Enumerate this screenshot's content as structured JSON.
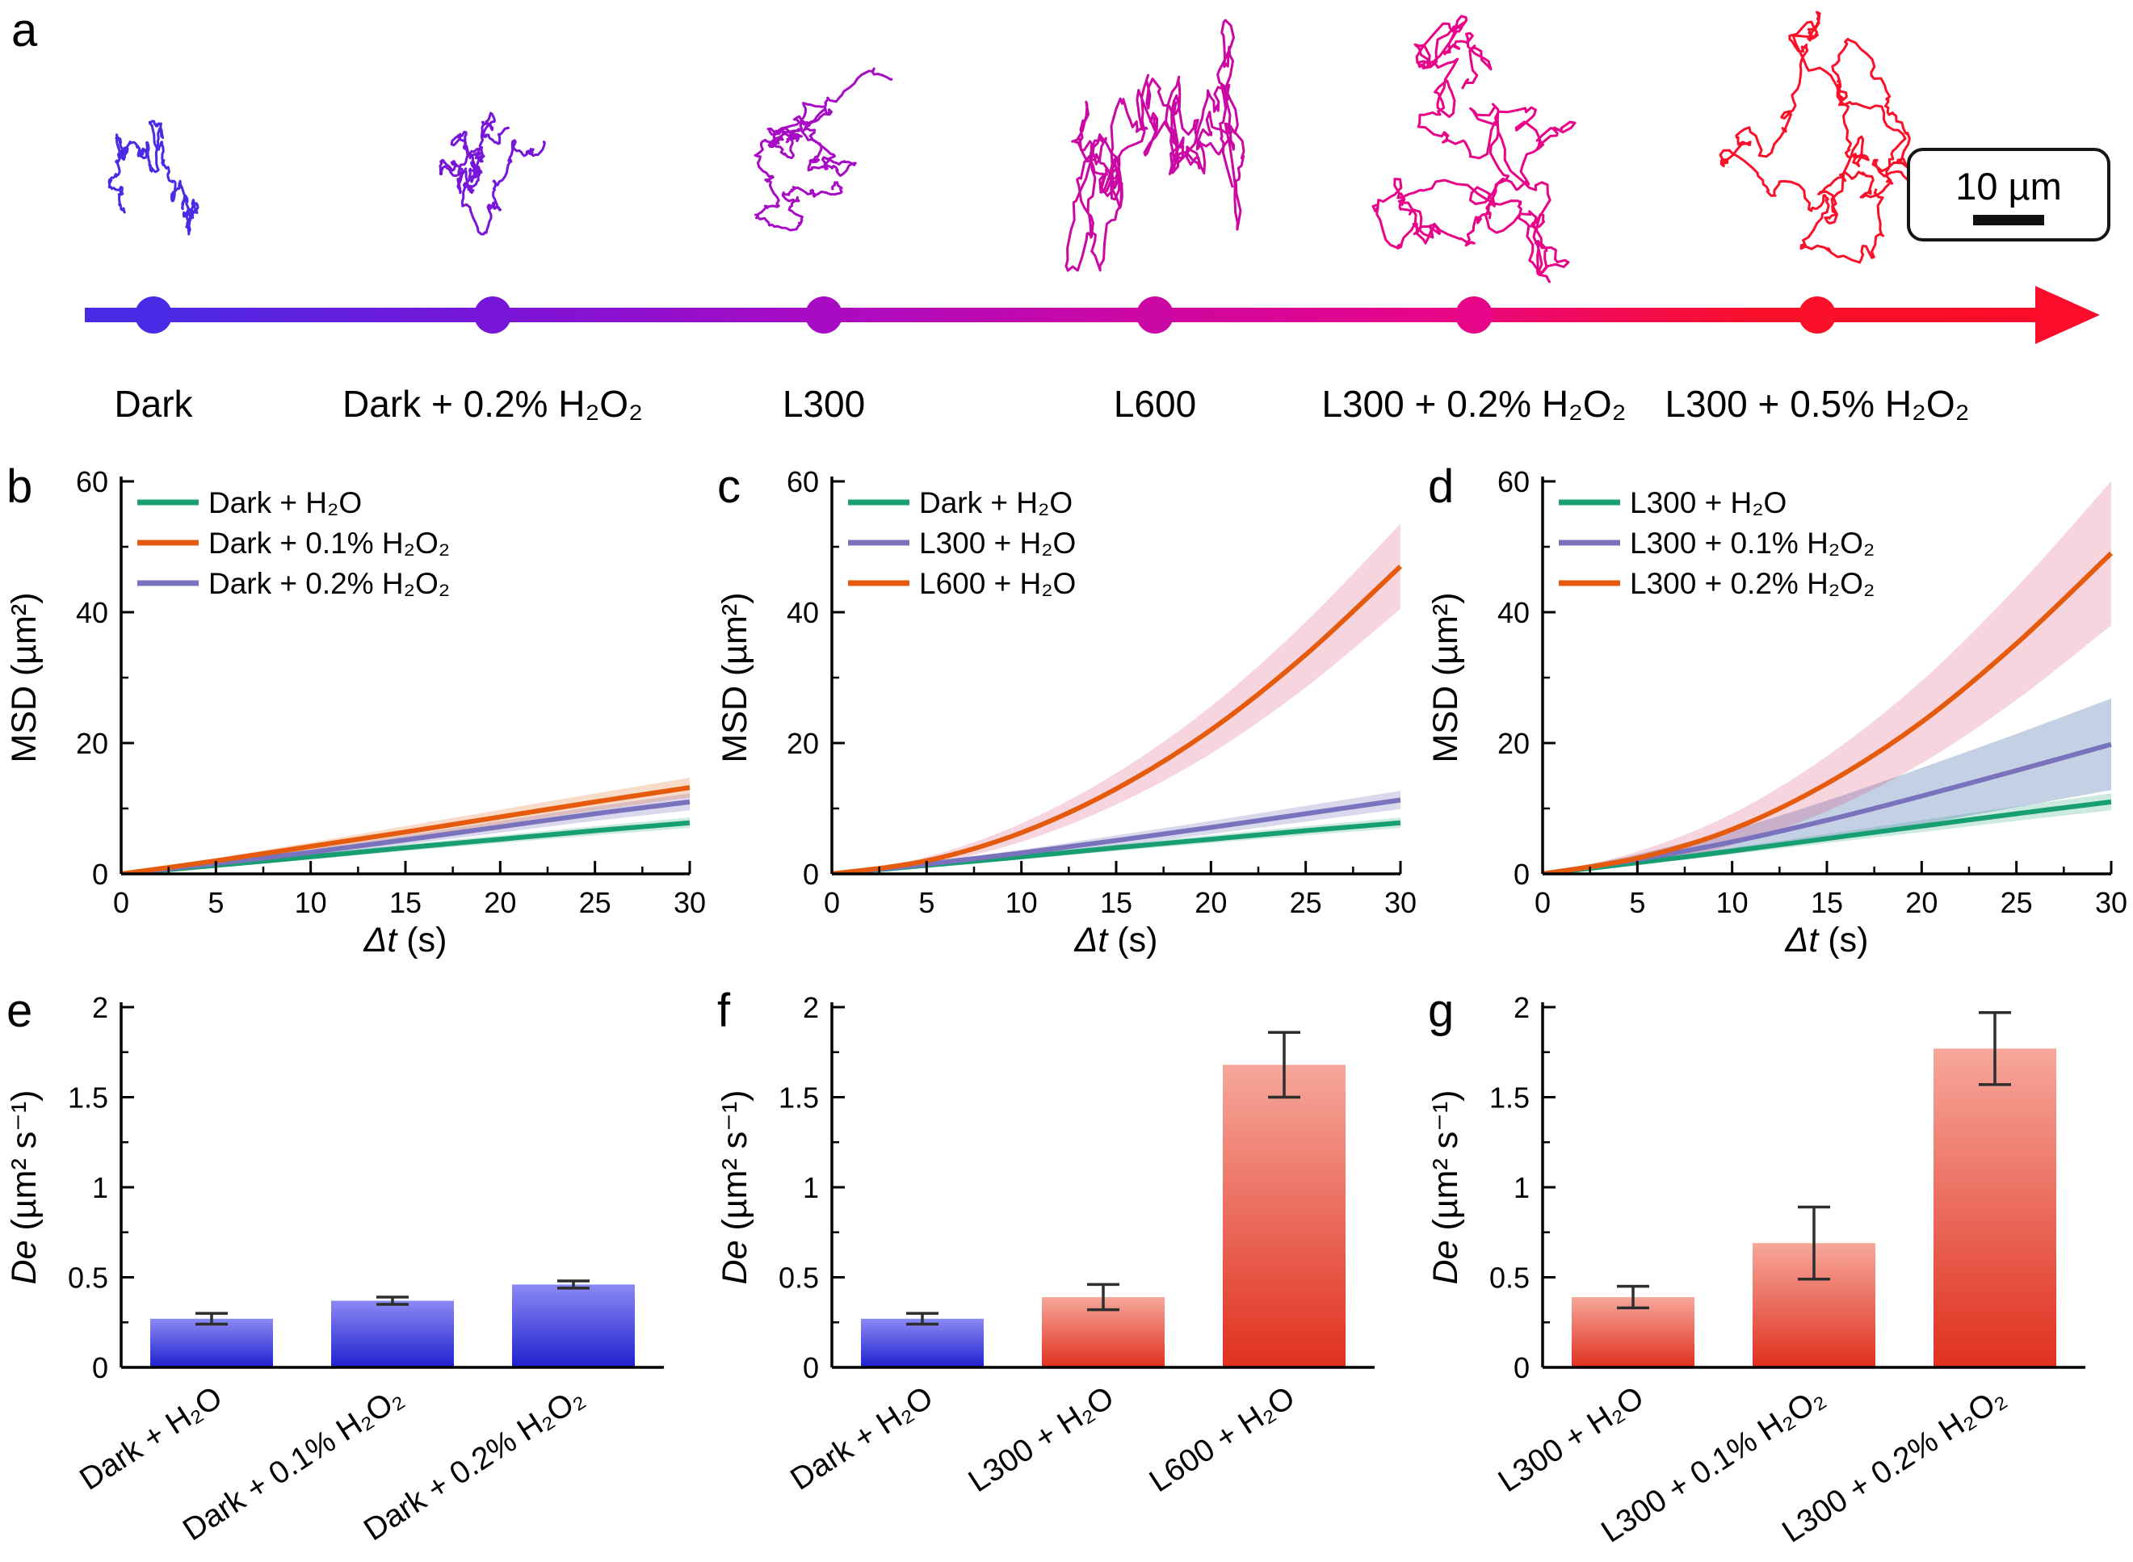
{
  "panel_a": {
    "label": "a",
    "scale_bar": {
      "label": "10 µm"
    },
    "arrow_gradient": [
      "#4033f0",
      "#fb0c2b"
    ],
    "conditions": [
      {
        "label": "Dark",
        "color": "#4a2be5"
      },
      {
        "label": "Dark + 0.2% H₂O₂",
        "color": "#7715d8"
      },
      {
        "label": "L300",
        "color": "#a70bc4"
      },
      {
        "label": "L600",
        "color": "#cb07a4"
      },
      {
        "label": "L300 + 0.2% H₂O₂",
        "color": "#e70488"
      },
      {
        "label": "L300 + 0.5% H₂O₂",
        "color": "#fa1028"
      }
    ]
  },
  "chart_data": [
    {
      "panel": "b",
      "type": "line",
      "xlabel": {
        "it": "Δt",
        "rest": " (s)"
      },
      "ylabel": "MSD (µm²)",
      "xlim": [
        0,
        30
      ],
      "ylim": [
        0,
        60
      ],
      "xticks": [
        0,
        5,
        10,
        15,
        20,
        25,
        30
      ],
      "yticks": [
        0,
        20,
        40,
        60
      ],
      "x": [
        0,
        5,
        10,
        15,
        20,
        25,
        30
      ],
      "plot_order": [
        0,
        2,
        1
      ],
      "legend_position": "top-left",
      "series": [
        {
          "name": "Dark + H₂O",
          "color": "#189e73",
          "band_color": "rgba(24,158,115,0.22)",
          "values": [
            0,
            1.3,
            2.6,
            4.0,
            5.3,
            6.6,
            7.8
          ],
          "band": [
            0,
            0.3,
            0.4,
            0.5,
            0.6,
            0.7,
            0.8
          ]
        },
        {
          "name": "Dark + 0.1% H₂O₂",
          "color": "#e55b0d",
          "band_color": "rgba(229,91,13,0.22)",
          "values": [
            0,
            2.0,
            4.2,
            6.4,
            8.7,
            11.0,
            13.2
          ],
          "band": [
            0,
            0.4,
            0.6,
            0.9,
            1.1,
            1.3,
            1.5
          ]
        },
        {
          "name": "Dark + 0.2% H₂O₂",
          "color": "#7b72bd",
          "band_color": "rgba(123,114,189,0.28)",
          "values": [
            0,
            1.6,
            3.3,
            5.2,
            7.2,
            9.2,
            11.0
          ],
          "band": [
            0,
            0.3,
            0.5,
            0.7,
            0.9,
            1.1,
            1.3
          ]
        }
      ]
    },
    {
      "panel": "c",
      "type": "line",
      "xlabel": {
        "it": "Δt",
        "rest": " (s)"
      },
      "ylabel": "MSD (µm²)",
      "xlim": [
        0,
        30
      ],
      "ylim": [
        0,
        60
      ],
      "xticks": [
        0,
        5,
        10,
        15,
        20,
        25,
        30
      ],
      "yticks": [
        0,
        20,
        40,
        60
      ],
      "x": [
        0,
        5,
        10,
        15,
        20,
        25,
        30
      ],
      "legend_position": "top-left",
      "series": [
        {
          "name": "Dark + H₂O",
          "color": "#189e73",
          "band_color": "rgba(24,158,115,0.22)",
          "values": [
            0,
            1.3,
            2.6,
            4.0,
            5.3,
            6.6,
            7.8
          ],
          "band": [
            0,
            0.3,
            0.4,
            0.5,
            0.6,
            0.7,
            0.8
          ]
        },
        {
          "name": "L300 + H₂O",
          "color": "#7b72bd",
          "band_color": "rgba(123,114,189,0.28)",
          "values": [
            0,
            1.5,
            3.2,
            5.1,
            7.1,
            9.2,
            11.3
          ],
          "band": [
            0,
            0.3,
            0.5,
            0.8,
            1.0,
            1.2,
            1.4
          ]
        },
        {
          "name": "L600 + H₂O",
          "color": "#e55b0d",
          "band_color": "rgba(217,64,110,0.22)",
          "values": [
            0,
            2.0,
            6.3,
            13.0,
            22.0,
            33.5,
            47.0
          ],
          "band": [
            0,
            0.6,
            1.4,
            2.4,
            3.6,
            5.0,
            6.5
          ]
        }
      ]
    },
    {
      "panel": "d",
      "type": "line",
      "xlabel": {
        "it": "Δt",
        "rest": " (s)"
      },
      "ylabel": "MSD (µm²)",
      "xlim": [
        0,
        30
      ],
      "ylim": [
        0,
        60
      ],
      "xticks": [
        0,
        5,
        10,
        15,
        20,
        25,
        30
      ],
      "yticks": [
        0,
        20,
        40,
        60
      ],
      "x": [
        0,
        5,
        10,
        15,
        20,
        25,
        30
      ],
      "legend_position": "top-left",
      "series": [
        {
          "name": "L300 + H₂O",
          "color": "#189e73",
          "band_color": "rgba(24,158,115,0.22)",
          "values": [
            0,
            1.7,
            3.5,
            5.4,
            7.3,
            9.2,
            11.0
          ],
          "band": [
            0,
            0.3,
            0.5,
            0.7,
            0.9,
            1.1,
            1.3
          ]
        },
        {
          "name": "L300 + 0.1% H₂O₂",
          "color": "#7b72bd",
          "band_color": "rgba(70,110,170,0.32)",
          "values": [
            0,
            2.2,
            4.9,
            8.2,
            11.9,
            15.8,
            19.8
          ],
          "band": [
            0,
            0.8,
            1.8,
            3.0,
            4.3,
            5.6,
            7.0
          ]
        },
        {
          "name": "L300 + 0.2% H₂O₂",
          "color": "#e55b0d",
          "band_color": "rgba(217,64,110,0.22)",
          "values": [
            0,
            2.4,
            6.8,
            13.8,
            23.2,
            35.2,
            49.0
          ],
          "band": [
            0,
            1.0,
            2.4,
            4.2,
            6.3,
            8.6,
            11.0
          ]
        }
      ]
    },
    {
      "panel": "e",
      "type": "bar",
      "ylabel": {
        "it": "De",
        "rest": " (µm² s⁻¹)"
      },
      "ylim": [
        0,
        2
      ],
      "yticks": [
        0,
        0.5,
        1,
        1.5,
        2
      ],
      "categories": [
        "Dark + H₂O",
        "Dark + 0.1% H₂O₂",
        "Dark + 0.2% H₂O₂"
      ],
      "values": [
        0.27,
        0.37,
        0.46
      ],
      "errors": [
        0.03,
        0.02,
        0.02
      ],
      "bar_gradients": [
        [
          "#8a8af4",
          "#2020cf"
        ],
        [
          "#8a8af4",
          "#2020cf"
        ],
        [
          "#8a8af4",
          "#2020cf"
        ]
      ]
    },
    {
      "panel": "f",
      "type": "bar",
      "ylabel": {
        "it": "De",
        "rest": " (µm² s⁻¹)"
      },
      "ylim": [
        0,
        2
      ],
      "yticks": [
        0,
        0.5,
        1,
        1.5,
        2
      ],
      "categories": [
        "Dark + H₂O",
        "L300 + H₂O",
        "L600 + H₂O"
      ],
      "values": [
        0.27,
        0.39,
        1.68
      ],
      "errors": [
        0.03,
        0.07,
        0.18
      ],
      "bar_gradients": [
        [
          "#8a8af4",
          "#2020cf"
        ],
        [
          "#f6a79b",
          "#e0301e"
        ],
        [
          "#f6a79b",
          "#e0301e"
        ]
      ]
    },
    {
      "panel": "g",
      "type": "bar",
      "ylabel": {
        "it": "De",
        "rest": " (µm² s⁻¹)"
      },
      "ylim": [
        0,
        2
      ],
      "yticks": [
        0,
        0.5,
        1,
        1.5,
        2
      ],
      "categories": [
        "L300 + H₂O",
        "L300 + 0.1% H₂O₂",
        "L300 + 0.2% H₂O₂"
      ],
      "values": [
        0.39,
        0.69,
        1.77
      ],
      "errors": [
        0.06,
        0.2,
        0.2
      ],
      "bar_gradients": [
        [
          "#f6a79b",
          "#e0301e"
        ],
        [
          "#f6a79b",
          "#e0301e"
        ],
        [
          "#f6a79b",
          "#e0301e"
        ]
      ]
    }
  ]
}
